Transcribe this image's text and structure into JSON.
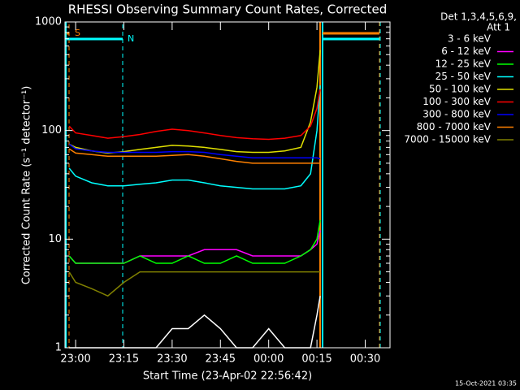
{
  "chart_data": {
    "type": "line",
    "title": "RHESSI Observing Summary Count Rates, Corrected",
    "x_label": "Start Time (23-Apr-02 22:56:42)",
    "y_label": "Corrected Count Rate (s⁻¹ detector⁻¹)",
    "legend_header": [
      "Det 1,3,4,5,6,9,",
      "Att 1"
    ],
    "footer": "15-Oct-2021 03:35",
    "annotations": [
      "S",
      "N"
    ],
    "log_y": true,
    "ylim": [
      1,
      1000
    ],
    "yticks": [
      1,
      10,
      100,
      1000
    ],
    "xlim": [
      -3.3,
      97.7
    ],
    "xticks": [
      {
        "value": 0,
        "label": "23:00"
      },
      {
        "value": 15,
        "label": "23:15"
      },
      {
        "value": 30,
        "label": "23:30"
      },
      {
        "value": 45,
        "label": "23:45"
      },
      {
        "value": 60,
        "label": "00:00"
      },
      {
        "value": 75,
        "label": "00:15"
      },
      {
        "value": 90,
        "label": "00:30"
      }
    ],
    "x": [
      -2,
      0,
      5,
      10,
      15,
      20,
      25,
      30,
      35,
      40,
      45,
      50,
      55,
      60,
      65,
      70,
      73,
      75,
      76
    ],
    "series": [
      {
        "name": "3 - 6 keV",
        "color": "#ffffff",
        "line_color": "#000000",
        "values": [
          1,
          1,
          1,
          1,
          1,
          1,
          1,
          1.5,
          1.5,
          2,
          1.5,
          1,
          1,
          1.5,
          1,
          1,
          1,
          2,
          3
        ]
      },
      {
        "name": "6 - 12 keV",
        "color": "#ff00ff",
        "values": [
          7,
          6,
          6,
          6,
          6,
          7,
          7,
          7,
          7,
          8,
          8,
          8,
          7,
          7,
          7,
          7,
          8,
          9,
          12
        ]
      },
      {
        "name": "12 - 25 keV",
        "color": "#00ff00",
        "values": [
          7,
          6,
          6,
          6,
          6,
          7,
          6,
          6,
          7,
          6,
          6,
          7,
          6,
          6,
          6,
          7,
          8,
          10,
          15
        ]
      },
      {
        "name": "25 - 50 keV",
        "color": "#00ffff",
        "values": [
          45,
          38,
          33,
          31,
          31,
          32,
          33,
          35,
          35,
          33,
          31,
          30,
          29,
          29,
          29,
          31,
          40,
          100,
          260
        ]
      },
      {
        "name": "50 - 100 keV",
        "color": "#e0e000",
        "values": [
          75,
          70,
          65,
          62,
          64,
          67,
          70,
          73,
          72,
          70,
          67,
          64,
          63,
          63,
          65,
          70,
          120,
          250,
          550
        ]
      },
      {
        "name": "100 - 300 keV",
        "color": "#ff0000",
        "values": [
          110,
          95,
          90,
          85,
          88,
          92,
          98,
          103,
          100,
          95,
          90,
          86,
          84,
          83,
          85,
          90,
          110,
          160,
          240
        ]
      },
      {
        "name": "300 - 800 keV",
        "color": "#0000ff",
        "values": [
          75,
          68,
          65,
          63,
          63,
          63,
          63,
          64,
          64,
          63,
          60,
          58,
          56,
          56,
          56,
          56,
          56,
          56,
          55
        ]
      },
      {
        "name": "800 - 7000 keV",
        "color": "#ff8000",
        "values": [
          68,
          62,
          60,
          58,
          58,
          58,
          58,
          59,
          60,
          58,
          55,
          52,
          50,
          50,
          50,
          50,
          50,
          50,
          50
        ]
      },
      {
        "name": "7000 - 15000 keV",
        "color": "#808000",
        "values": [
          5,
          4,
          3.5,
          3,
          4,
          5,
          5,
          5,
          5,
          5,
          5,
          5,
          5,
          5,
          5,
          5,
          5,
          5,
          5
        ]
      }
    ]
  }
}
